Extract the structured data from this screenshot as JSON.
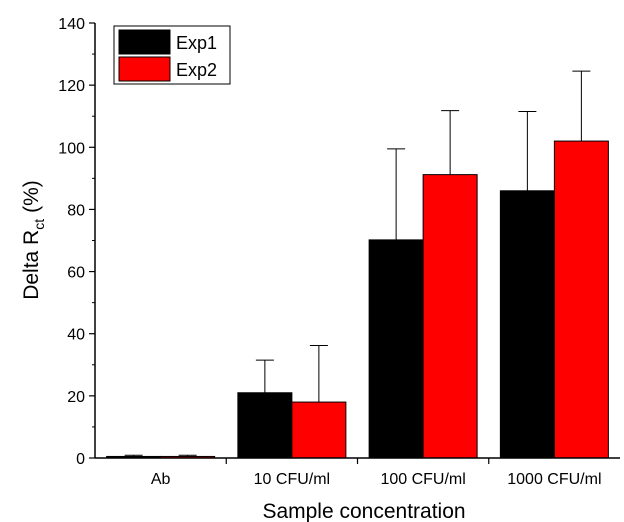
{
  "chart_data": {
    "type": "bar",
    "xlabel": "Sample concentration",
    "ylabel_main": "Delta R",
    "ylabel_sub": "ct",
    "ylabel_unit": "(%)",
    "categories": [
      "Ab",
      "10 CFU/ml",
      "100 CFU/ml",
      "1000 CFU/ml"
    ],
    "ylim": [
      0,
      140
    ],
    "yticks": [
      0,
      20,
      40,
      60,
      80,
      100,
      120,
      140
    ],
    "grid": false,
    "legend_position": "top-left",
    "series": [
      {
        "name": "Exp1",
        "color": "#000000",
        "values": [
          0.5,
          21,
          70.2,
          86
        ],
        "errors": [
          0.4,
          10.5,
          29.3,
          25.5
        ]
      },
      {
        "name": "Exp2",
        "color": "#ff0000",
        "values": [
          0.5,
          18,
          91.2,
          102
        ],
        "errors": [
          0.4,
          18.2,
          20.6,
          22.5
        ]
      }
    ]
  }
}
